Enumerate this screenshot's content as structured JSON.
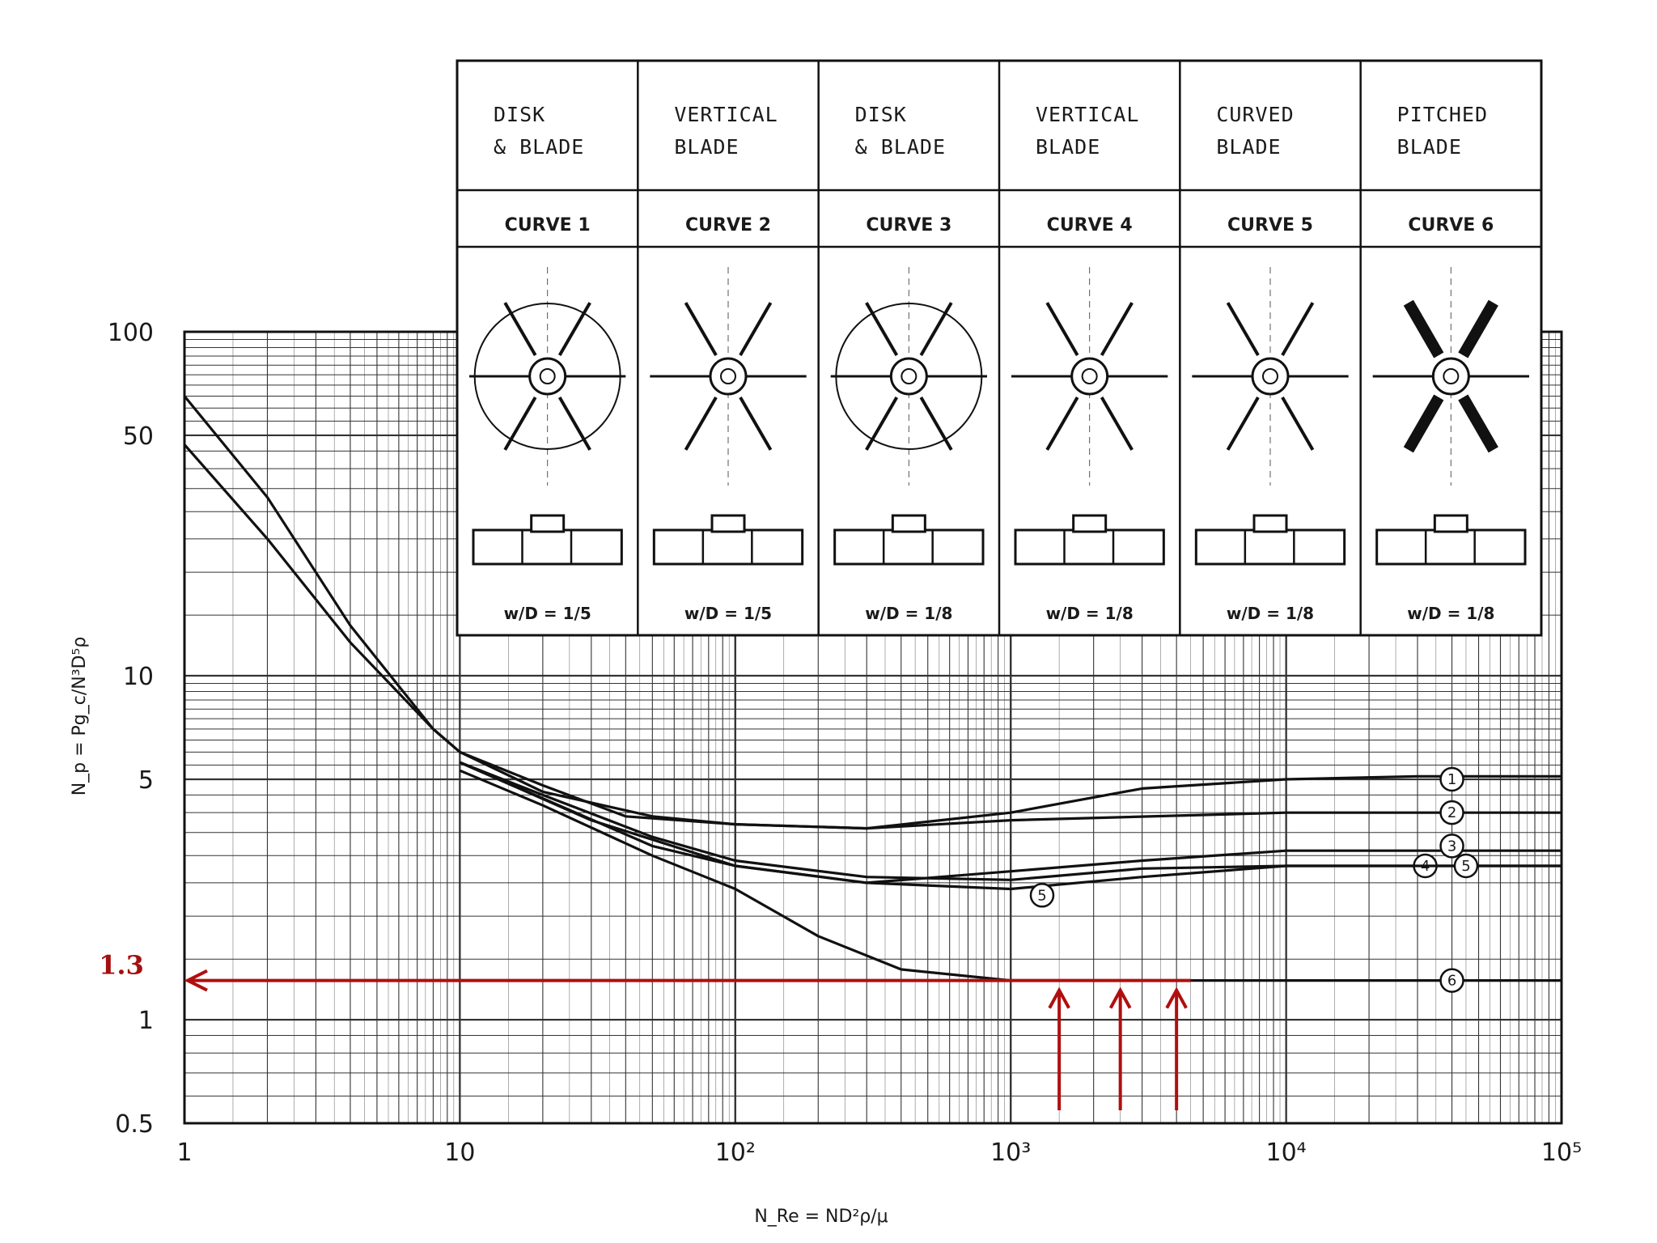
{
  "chart_data": {
    "type": "line",
    "xlabel": "N_Re = ND²ρ/μ",
    "ylabel": "N_p = Pg_c/N³D⁵ρ",
    "x_scale": "log",
    "y_scale": "log",
    "xlim": [
      1,
      100000
    ],
    "ylim": [
      0.5,
      100
    ],
    "x_ticks": [
      "1",
      "10",
      "10²",
      "10³",
      "10⁴",
      "10⁵"
    ],
    "y_ticks": [
      "100",
      "50",
      "10",
      "5",
      "1",
      "0.5"
    ],
    "grid": true,
    "impellers": [
      {
        "name": "DISK & BLADE",
        "curve": "CURVE 1",
        "wd": "w/D = 1/5"
      },
      {
        "name": "VERTICAL BLADE",
        "curve": "CURVE 2",
        "wd": "w/D = 1/5"
      },
      {
        "name": "DISK & BLADE",
        "curve": "CURVE 3",
        "wd": "w/D = 1/8"
      },
      {
        "name": "VERTICAL BLADE",
        "curve": "CURVE 4",
        "wd": "w/D = 1/8"
      },
      {
        "name": "CURVED BLADE",
        "curve": "CURVE 5",
        "wd": "w/D = 1/8"
      },
      {
        "name": "PITCHED BLADE",
        "curve": "CURVE 6",
        "wd": "w/D = 1/8"
      }
    ],
    "series": [
      {
        "name": "1",
        "label_at": [
          40000,
          5.0
        ],
        "points": [
          [
            1,
            65
          ],
          [
            2,
            33
          ],
          [
            4,
            14
          ],
          [
            8,
            7
          ],
          [
            10,
            6.0
          ],
          [
            20,
            4.6
          ],
          [
            50,
            3.9
          ],
          [
            100,
            3.7
          ],
          [
            300,
            3.6
          ],
          [
            1000,
            4.0
          ],
          [
            3000,
            4.7
          ],
          [
            10000,
            5.0
          ],
          [
            30000,
            5.1
          ],
          [
            100000,
            5.1
          ]
        ]
      },
      {
        "name": "2",
        "label_at": [
          40000,
          4.0
        ],
        "points": [
          [
            1,
            47
          ],
          [
            2,
            25
          ],
          [
            4,
            12.5
          ],
          [
            8,
            7.0
          ],
          [
            10,
            6.0
          ],
          [
            20,
            4.8
          ],
          [
            40,
            3.9
          ],
          [
            100,
            3.7
          ],
          [
            300,
            3.6
          ],
          [
            1000,
            3.8
          ],
          [
            10000,
            4.0
          ],
          [
            30000,
            4.0
          ],
          [
            100000,
            4.0
          ]
        ]
      },
      {
        "name": "3",
        "label_at": [
          40000,
          3.2
        ],
        "points": [
          [
            10,
            5.6
          ],
          [
            20,
            4.4
          ],
          [
            50,
            3.2
          ],
          [
            100,
            2.8
          ],
          [
            300,
            2.5
          ],
          [
            1000,
            2.7
          ],
          [
            3000,
            2.9
          ],
          [
            10000,
            3.1
          ],
          [
            30000,
            3.1
          ],
          [
            100000,
            3.1
          ]
        ]
      },
      {
        "name": "4",
        "label_at": [
          32000,
          2.8
        ],
        "points": [
          [
            10,
            5.6
          ],
          [
            20,
            4.5
          ],
          [
            50,
            3.4
          ],
          [
            100,
            2.9
          ],
          [
            300,
            2.6
          ],
          [
            1000,
            2.55
          ],
          [
            3000,
            2.75
          ],
          [
            10000,
            2.8
          ],
          [
            30000,
            2.8
          ],
          [
            100000,
            2.8
          ]
        ]
      },
      {
        "name": "5",
        "label_at": [
          1300,
          2.3
        ],
        "points": [
          [
            10,
            5.6
          ],
          [
            30,
            3.8
          ],
          [
            100,
            2.8
          ],
          [
            300,
            2.5
          ],
          [
            1000,
            2.4
          ],
          [
            3000,
            2.6
          ],
          [
            10000,
            2.8
          ],
          [
            30000,
            2.8
          ],
          [
            100000,
            2.8
          ]
        ]
      },
      {
        "name": "5",
        "label_at": [
          45000,
          2.8
        ],
        "points": []
      },
      {
        "name": "6",
        "label_at": [
          40000,
          1.3
        ],
        "points": [
          [
            10,
            5.3
          ],
          [
            20,
            4.2
          ],
          [
            50,
            3.0
          ],
          [
            100,
            2.4
          ],
          [
            200,
            1.75
          ],
          [
            400,
            1.4
          ],
          [
            1000,
            1.3
          ],
          [
            3000,
            1.3
          ],
          [
            10000,
            1.3
          ],
          [
            100000,
            1.3
          ]
        ]
      }
    ],
    "annotation": {
      "label": "1.3",
      "y": 1.3,
      "x_start": 4500,
      "x_end": 1,
      "up_arrows_x": [
        1500,
        2500,
        4000
      ],
      "color": "#b00f0f"
    }
  }
}
